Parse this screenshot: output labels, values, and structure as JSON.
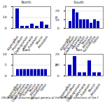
{
  "chart_data": [
    {
      "type": "bar",
      "title": "North",
      "categories": [
        "Aspergillus",
        "Penicillium",
        "Cladosporium",
        "Alternaria",
        "Fusarium",
        "Mucor",
        "Rhizopus"
      ],
      "values": [
        18,
        2,
        2,
        4,
        2,
        6,
        3
      ],
      "color": "#0000bb",
      "ylim": [
        0,
        20
      ],
      "yticks": [
        0,
        10,
        20
      ],
      "grid": true
    },
    {
      "type": "bar",
      "title": "South",
      "ylabel": "N",
      "categories": [
        "Aspergillus",
        "Penicillium",
        "Cladosporium",
        "Alternaria",
        "Fusarium",
        "Mucor",
        "Rhizopus",
        "Trichoderma",
        "Other"
      ],
      "values": [
        8,
        22,
        18,
        10,
        10,
        10,
        6,
        10,
        8
      ],
      "color": "#0000bb",
      "ylim": [
        0,
        25
      ],
      "yticks": [
        0,
        10,
        20
      ],
      "grid": true
    },
    {
      "type": "bar",
      "title": "East",
      "categories": [
        "Aspergillus",
        "Penicillium",
        "Cladosporium",
        "Alternaria",
        "Fusarium",
        "Mucor",
        "Rhizopus",
        "Trichoderma",
        "Other"
      ],
      "values": [
        3,
        3,
        3,
        3,
        3,
        3,
        3,
        3,
        3
      ],
      "color": "#0000bb",
      "ylim": [
        0,
        10
      ],
      "yticks": [
        0,
        5,
        10
      ],
      "grid": true
    },
    {
      "type": "bar",
      "title": "Two",
      "ylabel": "N",
      "categories": [
        "Aspergillus",
        "Penicillium",
        "Cladosporium",
        "Alternaria",
        "Fusarium",
        "Mucor",
        "Rhizopus"
      ],
      "values": [
        10,
        18,
        3,
        3,
        14,
        3,
        3
      ],
      "color": "#0000bb",
      "ylim": [
        0,
        20
      ],
      "yticks": [
        0,
        10,
        20
      ],
      "grid": true
    }
  ],
  "caption": "tification of airborne fungal genera at the different directions of the f"
}
